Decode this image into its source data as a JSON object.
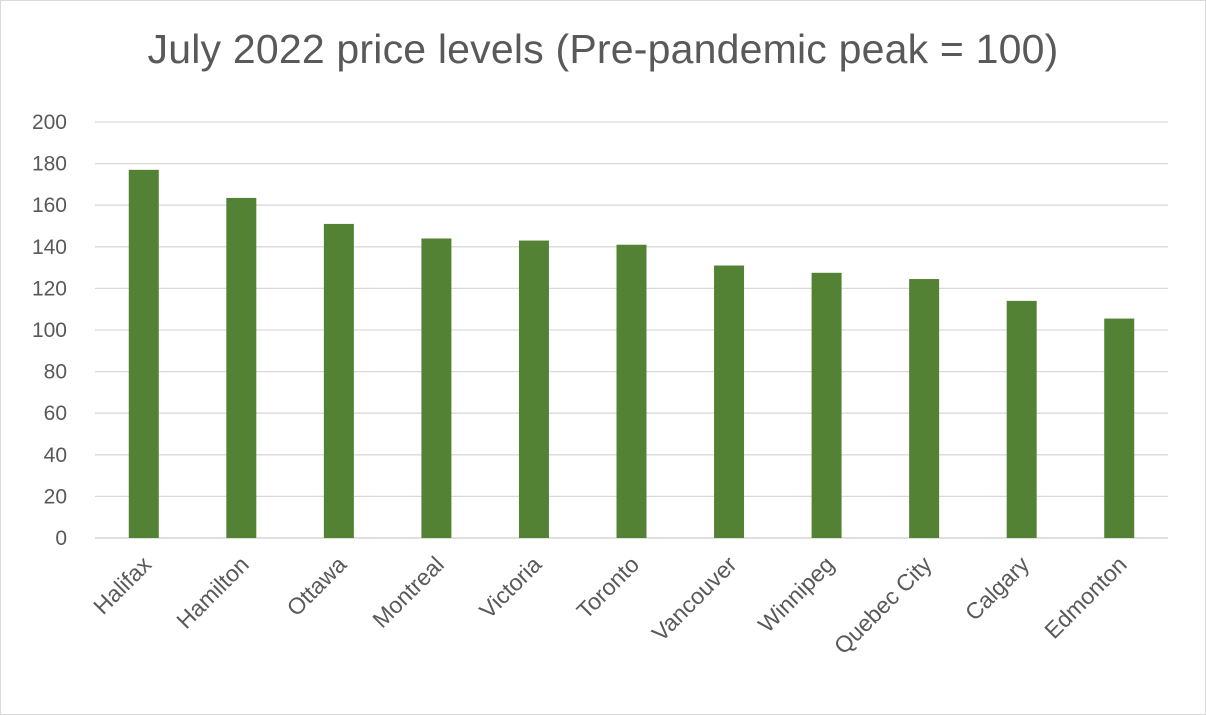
{
  "chart_data": {
    "type": "bar",
    "title": "July 2022 price levels (Pre-pandemic peak = 100)",
    "categories": [
      "Halifax",
      "Hamilton",
      "Ottawa",
      "Montreal",
      "Victoria",
      "Toronto",
      "Vancouver",
      "Winnipeg",
      "Quebec City",
      "Calgary",
      "Edmonton"
    ],
    "values": [
      177,
      163.5,
      151,
      144,
      143,
      141,
      131,
      127.5,
      124.5,
      114,
      105.5
    ],
    "ylim": [
      0,
      200
    ],
    "yticks": [
      "0",
      "20",
      "40",
      "60",
      "80",
      "100",
      "120",
      "140",
      "160",
      "180",
      "200"
    ],
    "xlabel": "",
    "ylabel": "",
    "grid": true,
    "legend": "none",
    "bar_color": "#548235",
    "gridline_color": "#d9d9d9",
    "text_color": "#595959"
  }
}
